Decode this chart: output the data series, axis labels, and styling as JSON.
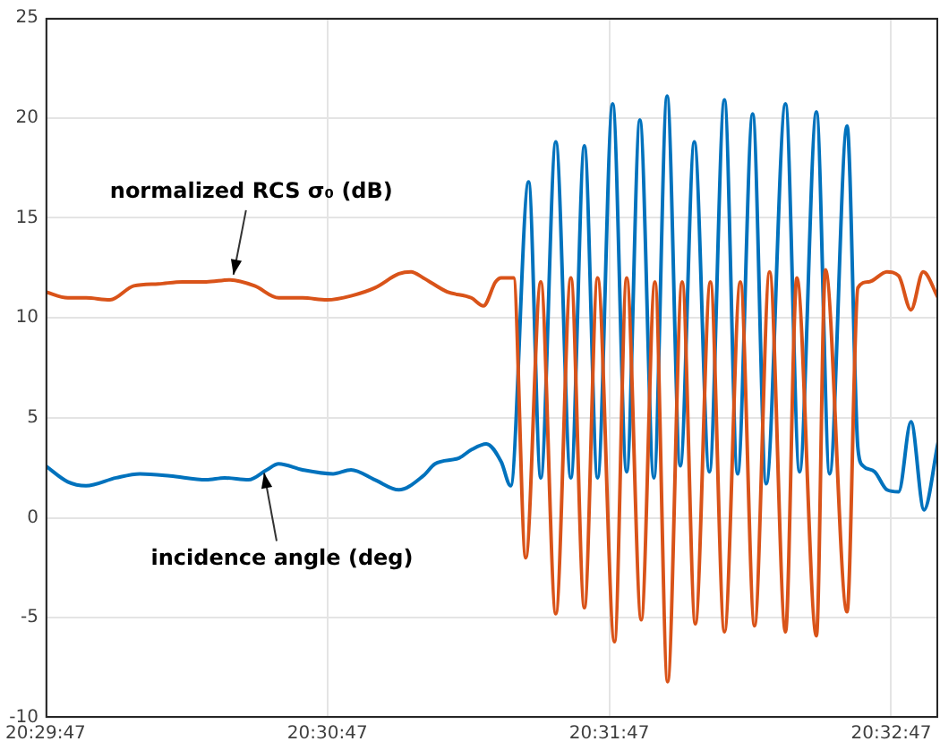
{
  "chart_data": {
    "type": "line",
    "xlim": [
      20.49639,
      20.54917
    ],
    "xticks": [
      {
        "value": 20.49639,
        "label": "20:29:47"
      },
      {
        "value": 20.513056,
        "label": "20:30:47"
      },
      {
        "value": 20.529722,
        "label": "20:31:47"
      },
      {
        "value": 20.546389,
        "label": "20:32:47"
      }
    ],
    "ylim": [
      -10,
      25
    ],
    "yticks": [
      -10,
      -5,
      0,
      5,
      10,
      15,
      20,
      25
    ],
    "grid": true,
    "legend": false,
    "marker": "none",
    "line_style": "solid",
    "annotations": [
      {
        "text": "normalized RCS σ₀ (dB)",
        "x": 20.5075,
        "y": 11.8
      },
      {
        "text": "incidence angle (deg)",
        "x": 20.50931,
        "y": 2.6
      }
    ],
    "series": [
      {
        "color": "#d95319",
        "x": [
          20.49639,
          20.4977,
          20.49878,
          20.5002,
          20.50161,
          20.50306,
          20.50447,
          20.50589,
          20.50731,
          20.50875,
          20.51017,
          20.51158,
          20.51303,
          20.51445,
          20.51586,
          20.51728,
          20.518,
          20.51872,
          20.52014,
          20.52156,
          20.52228,
          20.523,
          20.52333,
          20.52406,
          20.52478,
          20.52567,
          20.52656,
          20.52745,
          20.52825,
          20.52903,
          20.53003,
          20.53075,
          20.53161,
          20.53242,
          20.53317,
          20.53403,
          20.53481,
          20.5357,
          20.53653,
          20.53747,
          20.53831,
          20.5392,
          20.54014,
          20.54081,
          20.54197,
          20.5425,
          20.54378,
          20.54442,
          20.54506,
          20.54614,
          20.54683,
          20.54756,
          20.54828,
          20.54917
        ],
        "values": [
          11.3,
          11.0,
          11.0,
          10.9,
          11.6,
          11.7,
          11.8,
          11.8,
          11.9,
          11.6,
          11.0,
          11.0,
          10.9,
          11.1,
          11.5,
          12.2,
          12.3,
          12.0,
          11.3,
          11.0,
          10.6,
          11.8,
          12.0,
          12.0,
          -2.0,
          11.8,
          -4.8,
          12.0,
          -4.5,
          12.0,
          -6.2,
          12.0,
          -5.1,
          11.8,
          -8.2,
          11.8,
          -5.3,
          11.8,
          -5.7,
          11.8,
          -5.4,
          12.3,
          -5.7,
          12.0,
          -5.9,
          12.4,
          -4.7,
          11.5,
          11.8,
          12.3,
          12.1,
          10.4,
          12.3,
          11.0
        ]
      },
      {
        "color": "#0072bd",
        "x": [
          20.49639,
          20.4977,
          20.49878,
          20.50056,
          20.50197,
          20.50375,
          20.50589,
          20.50697,
          20.50839,
          20.50947,
          20.51017,
          20.51158,
          20.51339,
          20.51445,
          20.51586,
          20.51728,
          20.51872,
          20.51942,
          20.52086,
          20.52156,
          20.52245,
          20.52333,
          20.52389,
          20.52495,
          20.52567,
          20.52656,
          20.52745,
          20.52825,
          20.52903,
          20.52992,
          20.53075,
          20.53153,
          20.53236,
          20.53314,
          20.53392,
          20.53475,
          20.53564,
          20.53653,
          20.53731,
          20.5382,
          20.539,
          20.54014,
          20.54097,
          20.54197,
          20.54275,
          20.54378,
          20.54442,
          20.54472,
          20.54542,
          20.54614,
          20.54683,
          20.54756,
          20.54833,
          20.54917
        ],
        "values": [
          2.6,
          1.8,
          1.6,
          2.0,
          2.2,
          2.1,
          1.9,
          2.0,
          1.9,
          2.4,
          2.7,
          2.4,
          2.2,
          2.4,
          1.9,
          1.4,
          2.1,
          2.7,
          3.0,
          3.4,
          3.7,
          2.8,
          1.6,
          16.8,
          2.0,
          18.8,
          2.0,
          18.6,
          2.0,
          20.7,
          2.3,
          19.9,
          2.0,
          21.1,
          2.6,
          18.8,
          2.3,
          20.9,
          2.2,
          20.2,
          1.7,
          20.7,
          2.3,
          20.3,
          2.2,
          19.6,
          3.5,
          2.6,
          2.3,
          1.4,
          1.3,
          4.8,
          0.4,
          3.8
        ]
      }
    ]
  }
}
